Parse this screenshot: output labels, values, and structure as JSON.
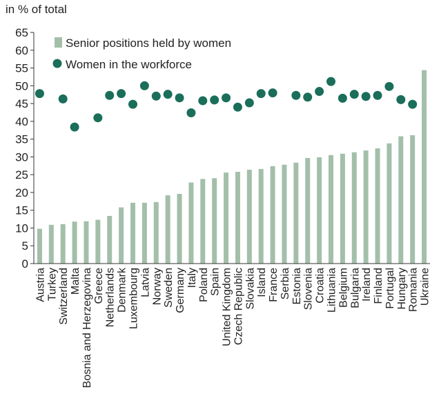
{
  "chart_data": {
    "type": "bar",
    "unit_label": "in % of total",
    "ylim": [
      0,
      65
    ],
    "yticks": [
      0,
      5,
      10,
      15,
      20,
      25,
      30,
      35,
      40,
      45,
      50,
      55,
      60,
      65
    ],
    "grid": false,
    "legend_position": "top-left",
    "categories": [
      "Austria",
      "Turkey",
      "Switzerland",
      "Malta",
      "Bosnia and Herzegovina",
      "Greece",
      "Netherlands",
      "Denmark",
      "Luxembourg",
      "Latvia",
      "Norway",
      "Sweden",
      "Germany",
      "Italy",
      "Poland",
      "Spain",
      "United Kingdom",
      "Czech Republic",
      "Slovakia",
      "Island",
      "France",
      "Serbia",
      "Estonia",
      "Slovenia",
      "Croatia",
      "Lithuania",
      "Belgium",
      "Bulgaria",
      "Ireland",
      "Finland",
      "Portugal",
      "Hungary",
      "Romania",
      "Ukraine"
    ],
    "series": [
      {
        "name": "Senior positions held by women",
        "kind": "bar",
        "color": "#a3bfaa",
        "values": [
          9.8,
          10.9,
          11.1,
          11.8,
          11.9,
          12.3,
          13.4,
          15.8,
          17.1,
          17.1,
          17.3,
          19.2,
          19.6,
          22.8,
          23.8,
          24.0,
          25.6,
          25.8,
          26.4,
          26.6,
          27.4,
          27.8,
          28.4,
          29.7,
          29.9,
          30.5,
          30.9,
          31.3,
          31.8,
          32.4,
          33.8,
          35.8,
          36.1,
          54.4
        ]
      },
      {
        "name": "Women in the workforce",
        "kind": "dot",
        "color": "#1a6e5a",
        "values": [
          47.8,
          null,
          46.3,
          38.4,
          null,
          41.0,
          47.3,
          47.8,
          44.8,
          50.0,
          47.1,
          47.6,
          46.6,
          42.4,
          45.8,
          46.0,
          46.6,
          44.0,
          45.2,
          47.8,
          48.0,
          null,
          47.3,
          46.8,
          48.4,
          51.2,
          46.5,
          47.6,
          47.0,
          47.3,
          49.8,
          46.1,
          44.8,
          null
        ]
      }
    ]
  }
}
